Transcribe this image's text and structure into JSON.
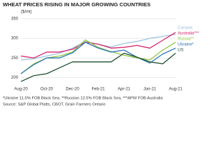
{
  "chart_data": {
    "type": "line",
    "title": "WHEAT PRICES RISING IN MAJOR GROWING COUNTRIES",
    "subtitle": "($/mt)",
    "categories": [
      "Aug-20",
      null,
      "Oct-20",
      null,
      "Dec-20",
      null,
      "Feb-21",
      null,
      "Apr-21",
      null,
      "Jun-21",
      null,
      "Aug-21"
    ],
    "series": [
      {
        "name": "Canada",
        "color": "#9fc5e0",
        "values": [
          245,
          248,
          255,
          262,
          275,
          292,
          285,
          278,
          287,
          292,
          300,
          305,
          310
        ]
      },
      {
        "name": "Australia***",
        "color": "#d6246e",
        "values": [
          255,
          250,
          265,
          265,
          272,
          290,
          285,
          275,
          277,
          282,
          275,
          295,
          315
        ]
      },
      {
        "name": "Russia**",
        "color": "#8dc63f",
        "values": [
          210,
          235,
          250,
          255,
          265,
          296,
          277,
          266,
          257,
          250,
          245,
          270,
          290
        ]
      },
      {
        "name": "Ukraine*",
        "color": "#2e75b6",
        "values": [
          210,
          233,
          250,
          250,
          263,
          290,
          275,
          265,
          270,
          252,
          237,
          260,
          275
        ]
      },
      {
        "name": "US",
        "color": "#1e4d2b",
        "values": [
          190,
          205,
          210,
          225,
          240,
          240,
          240,
          240,
          262,
          252,
          240,
          235,
          262
        ]
      }
    ],
    "ylim": [
      185,
      355
    ],
    "yticks": [
      200,
      250,
      300,
      350
    ],
    "grid": true,
    "footnotes": [
      "*Ukraine 11.5% FOB Black Sea, **Russian 12.5% FOB Black Sea, ***APW FOB Australia",
      "Source: S&P Global Platts, CBOT, Grain Farmers Ontario"
    ]
  }
}
